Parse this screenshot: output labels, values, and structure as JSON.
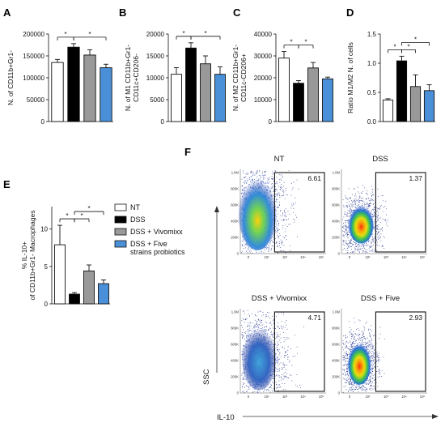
{
  "colors": {
    "NT": "#ffffff",
    "DSS": "#000000",
    "DSS + Vivomixx": "#999999",
    "DSS + Five strains probiotics": "#4a90d9"
  },
  "legend": [
    "NT",
    "DSS",
    "DSS + Vivomixx",
    "DSS + Five strains probiotics"
  ],
  "legend_lines": [
    [
      "NT"
    ],
    [
      "DSS"
    ],
    [
      "DSS + Vivomixx"
    ],
    [
      "DSS + Five",
      "strains probiotics"
    ]
  ],
  "chart_data": [
    {
      "panel": "A",
      "type": "bar",
      "categories": [
        "NT",
        "DSS",
        "DSS + Vivomixx",
        "DSS + Five strains probiotics"
      ],
      "values": [
        135000,
        170000,
        152000,
        123000
      ],
      "errors": [
        7000,
        8000,
        12000,
        8000
      ],
      "ylabel": [
        "N. of CD11b+Gr1-"
      ],
      "ylim": [
        0,
        200000
      ],
      "yticks": [
        0,
        50000,
        100000,
        150000,
        200000
      ],
      "sig": [
        "*",
        "*"
      ]
    },
    {
      "panel": "B",
      "type": "bar",
      "categories": [
        "NT",
        "DSS",
        "DSS + Vivomixx",
        "DSS + Five strains probiotics"
      ],
      "values": [
        10800,
        16800,
        13200,
        10800
      ],
      "errors": [
        1500,
        1200,
        1800,
        1700
      ],
      "ylabel": [
        "N. of M1 CD11b+Gr1-",
        "CD11c+CD206-"
      ],
      "ylim": [
        0,
        20000
      ],
      "yticks": [
        0,
        5000,
        10000,
        15000,
        20000
      ],
      "sig": [
        "*",
        "*"
      ]
    },
    {
      "panel": "C",
      "type": "bar",
      "categories": [
        "NT",
        "DSS",
        "DSS + Vivomixx",
        "DSS + Five strains probiotics"
      ],
      "values": [
        29000,
        17500,
        24500,
        19500
      ],
      "errors": [
        3000,
        1200,
        2500,
        800
      ],
      "ylabel": [
        "N. of M2 CD11b+Gr1-",
        "CD11c-CD206+"
      ],
      "ylim": [
        0,
        40000
      ],
      "yticks": [
        0,
        10000,
        20000,
        30000,
        40000
      ],
      "sig": [
        "*",
        "*"
      ]
    },
    {
      "panel": "D",
      "type": "bar",
      "categories": [
        "NT",
        "DSS",
        "DSS + Vivomixx",
        "DSS + Five strains probiotics"
      ],
      "values": [
        0.37,
        1.04,
        0.6,
        0.53
      ],
      "errors": [
        0.02,
        0.08,
        0.2,
        0.1
      ],
      "ylabel": [
        "Ratio M1/M2 N. of cells"
      ],
      "ylim": [
        0,
        1.5
      ],
      "yticks": [
        0.0,
        0.5,
        1.0,
        1.5
      ],
      "sig": [
        "*",
        "*",
        "*"
      ]
    },
    {
      "panel": "E",
      "type": "bar",
      "categories": [
        "NT",
        "DSS",
        "DSS + Vivomixx",
        "DSS + Five strains probiotics"
      ],
      "values": [
        7.9,
        1.3,
        4.4,
        2.7
      ],
      "errors": [
        2.6,
        0.2,
        0.8,
        0.5
      ],
      "ylabel": [
        "% IL-10+",
        "of CD11b+Gr1- Macrophages"
      ],
      "ylim": [
        0,
        13
      ],
      "yticks": [
        0,
        5,
        10
      ],
      "sig": [
        "*",
        "*",
        "*"
      ]
    }
  ],
  "flow": {
    "panel": "F",
    "xaxis_label": "IL-10",
    "yaxis_label": "SSC",
    "y_ticks": [
      "1.0M",
      "800K",
      "600K",
      "400K",
      "200K",
      "0"
    ],
    "x_ticks": [
      "0",
      "10²",
      "10³",
      "10⁴",
      "10⁵"
    ],
    "plots": [
      {
        "title": "NT",
        "percent": "6.61"
      },
      {
        "title": "DSS",
        "percent": "1.37"
      },
      {
        "title": "DSS + Vivomixx",
        "percent": "4.71"
      },
      {
        "title": "DSS + Five",
        "percent": "2.93"
      }
    ]
  }
}
